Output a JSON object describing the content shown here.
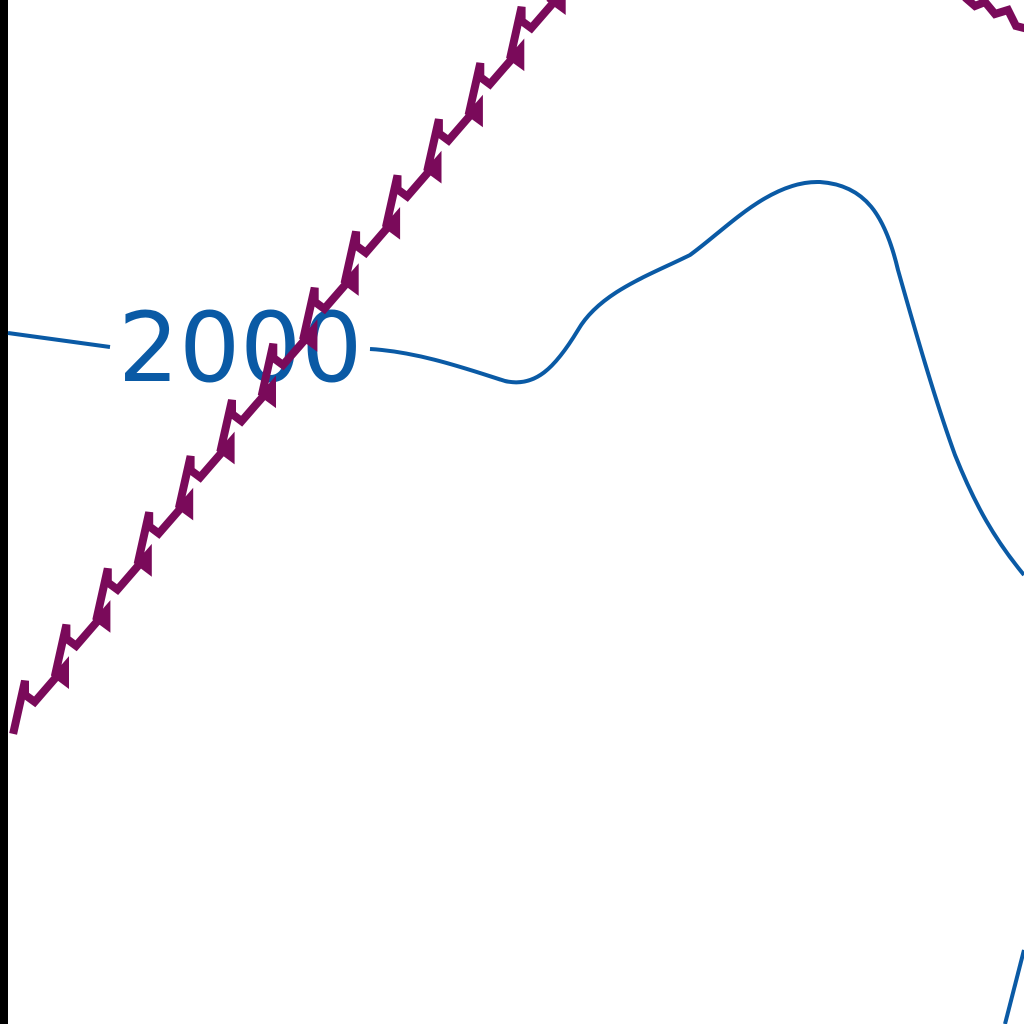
{
  "contour": {
    "label": "2000",
    "color": "#0a5aa5"
  },
  "boundary": {
    "color": "#7a0a5a",
    "style": "zigzag"
  },
  "frame_edge_color": "#000000"
}
